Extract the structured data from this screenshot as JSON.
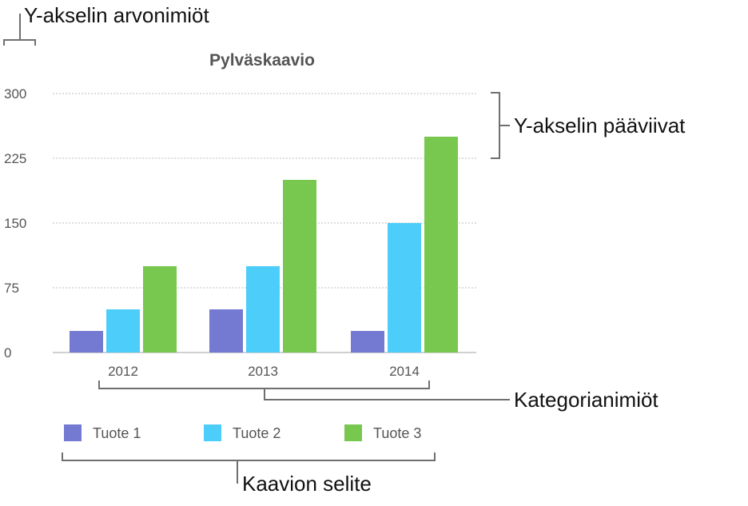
{
  "chart_data": {
    "type": "bar",
    "title": "Pylväskaavio",
    "categories": [
      "2012",
      "2013",
      "2014"
    ],
    "series": [
      {
        "name": "Tuote 1",
        "color": "#7479d1",
        "values": [
          25,
          50,
          25
        ]
      },
      {
        "name": "Tuote 2",
        "color": "#4dcdfa",
        "values": [
          50,
          100,
          150
        ]
      },
      {
        "name": "Tuote 3",
        "color": "#78c84f",
        "values": [
          100,
          200,
          250
        ]
      }
    ],
    "y_ticks": [
      "0",
      "75",
      "150",
      "225",
      "300"
    ],
    "ylim": [
      0,
      300
    ],
    "grid": true,
    "legend_position": "bottom"
  },
  "callouts": {
    "y_axis_labels": "Y-akselin arvonimiöt",
    "y_axis_gridlines": "Y-akselin pääviivat",
    "category_labels": "Kategorianimiöt",
    "chart_legend": "Kaavion selite"
  }
}
